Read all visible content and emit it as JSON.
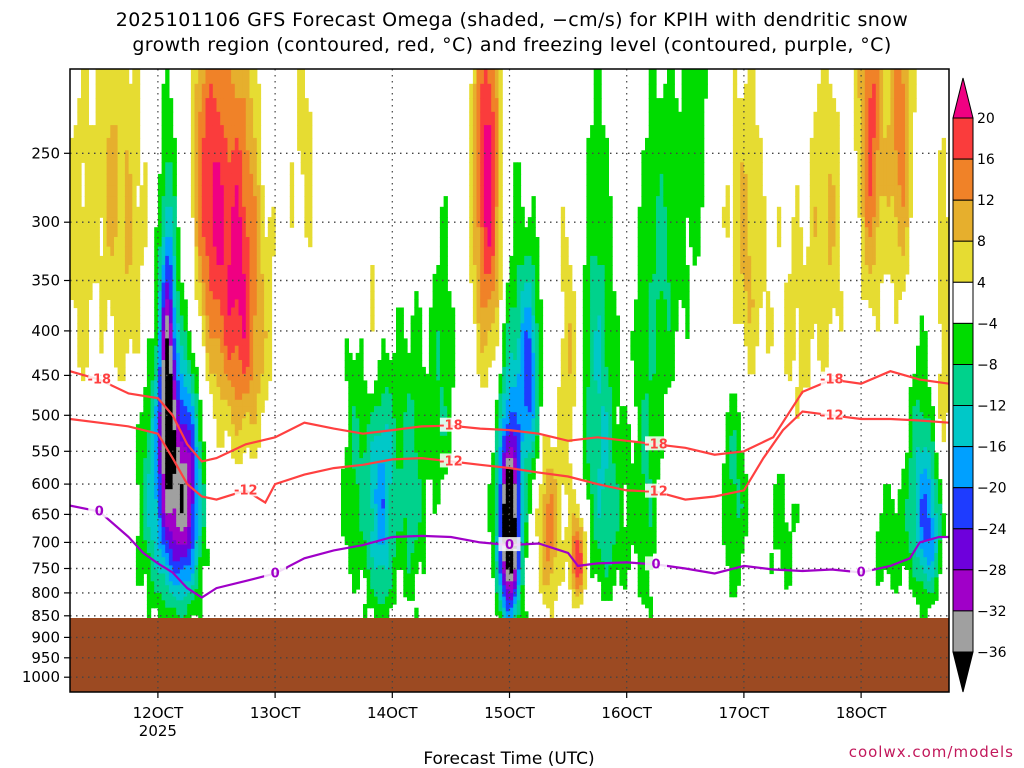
{
  "title_line1": "2025101106 GFS Forecast Omega (shaded, −cm/s) for KPIH with dendritic snow",
  "title_line2": "growth region (contoured, red, °C) and freezing level (contoured, purple, °C)",
  "credit": "coolwx.com/models",
  "chart_data": {
    "type": "heatmap",
    "title": "2025101106 GFS Forecast Omega (shaded, −cm/s) for KPIH with dendritic snow growth region (contoured, red, °C) and freezing level (contoured, purple, °C)",
    "xlabel": "Forecast Time (UTC)",
    "ylabel": "",
    "x_ticks": [
      {
        "label": "12OCT",
        "sublabel": "2025",
        "hour": 18
      },
      {
        "label": "13OCT",
        "sublabel": "",
        "hour": 42
      },
      {
        "label": "14OCT",
        "sublabel": "",
        "hour": 66
      },
      {
        "label": "15OCT",
        "sublabel": "",
        "hour": 90
      },
      {
        "label": "16OCT",
        "sublabel": "",
        "hour": 114
      },
      {
        "label": "17OCT",
        "sublabel": "",
        "hour": 138
      },
      {
        "label": "18OCT",
        "sublabel": "",
        "hour": 162
      }
    ],
    "xlim_hours": [
      0,
      180
    ],
    "y_ticks": [
      250,
      300,
      350,
      400,
      450,
      500,
      550,
      600,
      650,
      700,
      750,
      800,
      850,
      900,
      950,
      1000
    ],
    "ylim_hPa": [
      200,
      1040
    ],
    "y_scale": "log-pressure",
    "terrain_top_hPa": 855,
    "terrain_color": "#9c4a22",
    "colorbar": {
      "levels": [
        -36,
        -32,
        -28,
        -24,
        -20,
        -16,
        -12,
        -8,
        -4,
        4,
        8,
        12,
        16,
        20
      ],
      "labels": [
        "20",
        "16",
        "12",
        "8",
        "4",
        "−4",
        "−8",
        "−12",
        "−16",
        "−20",
        "−24",
        "−28",
        "−32",
        "−36"
      ],
      "colors": {
        "lt_-36": "#000000",
        "-36_-32": "#a0a0a0",
        "-32_-28": "#a000c8",
        "-28_-24": "#6e00dc",
        "-24_-20": "#1e3cff",
        "-20_-16": "#00a0ff",
        "-16_-12": "#00c8c8",
        "-12_-8": "#00d28c",
        "-8_-4": "#00dc00",
        "-4_4": "#ffffff",
        "4_8": "#e6dc32",
        "8_12": "#e6af2d",
        "12_16": "#f08228",
        "16_20": "#fa3c3c",
        "gt_20": "#f00082"
      }
    },
    "contours": {
      "dendritic_color": "#ff4040",
      "freezing_color": "#a000c8",
      "m18": {
        "label": "-18",
        "points": [
          [
            0,
            445
          ],
          [
            6,
            455
          ],
          [
            12,
            472
          ],
          [
            18,
            478
          ],
          [
            21,
            500
          ],
          [
            24,
            540
          ],
          [
            27,
            565
          ],
          [
            30,
            560
          ],
          [
            36,
            540
          ],
          [
            42,
            530
          ],
          [
            48,
            510
          ],
          [
            54,
            518
          ],
          [
            60,
            525
          ],
          [
            66,
            520
          ],
          [
            72,
            515
          ],
          [
            78,
            514
          ],
          [
            84,
            518
          ],
          [
            90,
            520
          ],
          [
            96,
            525
          ],
          [
            102,
            535
          ],
          [
            108,
            530
          ],
          [
            114,
            535
          ],
          [
            120,
            540
          ],
          [
            126,
            545
          ],
          [
            132,
            555
          ],
          [
            138,
            550
          ],
          [
            144,
            530
          ],
          [
            150,
            470
          ],
          [
            156,
            455
          ],
          [
            162,
            460
          ],
          [
            168,
            445
          ],
          [
            174,
            455
          ],
          [
            180,
            460
          ]
        ]
      },
      "m12": {
        "label": "-12",
        "points": [
          [
            0,
            505
          ],
          [
            6,
            510
          ],
          [
            12,
            515
          ],
          [
            18,
            525
          ],
          [
            21,
            560
          ],
          [
            24,
            600
          ],
          [
            27,
            620
          ],
          [
            30,
            625
          ],
          [
            36,
            610
          ],
          [
            40,
            630
          ],
          [
            42,
            600
          ],
          [
            48,
            585
          ],
          [
            54,
            575
          ],
          [
            60,
            570
          ],
          [
            66,
            562
          ],
          [
            72,
            560
          ],
          [
            78,
            565
          ],
          [
            84,
            570
          ],
          [
            90,
            575
          ],
          [
            96,
            582
          ],
          [
            102,
            588
          ],
          [
            108,
            600
          ],
          [
            114,
            610
          ],
          [
            120,
            612
          ],
          [
            126,
            625
          ],
          [
            132,
            620
          ],
          [
            138,
            610
          ],
          [
            142,
            560
          ],
          [
            146,
            520
          ],
          [
            150,
            495
          ],
          [
            156,
            500
          ],
          [
            162,
            505
          ],
          [
            168,
            505
          ],
          [
            174,
            507
          ],
          [
            180,
            510
          ]
        ]
      },
      "zero": {
        "label": "0",
        "points": [
          [
            0,
            635
          ],
          [
            6,
            645
          ],
          [
            12,
            690
          ],
          [
            15,
            720
          ],
          [
            18,
            740
          ],
          [
            21,
            758
          ],
          [
            24,
            790
          ],
          [
            27,
            810
          ],
          [
            30,
            790
          ],
          [
            36,
            775
          ],
          [
            42,
            760
          ],
          [
            48,
            730
          ],
          [
            54,
            715
          ],
          [
            60,
            705
          ],
          [
            66,
            690
          ],
          [
            72,
            688
          ],
          [
            78,
            690
          ],
          [
            84,
            700
          ],
          [
            90,
            705
          ],
          [
            96,
            702
          ],
          [
            102,
            720
          ],
          [
            104,
            745
          ],
          [
            108,
            740
          ],
          [
            114,
            738
          ],
          [
            120,
            742
          ],
          [
            126,
            750
          ],
          [
            132,
            760
          ],
          [
            138,
            745
          ],
          [
            144,
            752
          ],
          [
            150,
            755
          ],
          [
            156,
            752
          ],
          [
            162,
            758
          ],
          [
            168,
            745
          ],
          [
            172,
            730
          ],
          [
            174,
            700
          ],
          [
            178,
            690
          ],
          [
            180,
            690
          ]
        ]
      }
    }
  }
}
